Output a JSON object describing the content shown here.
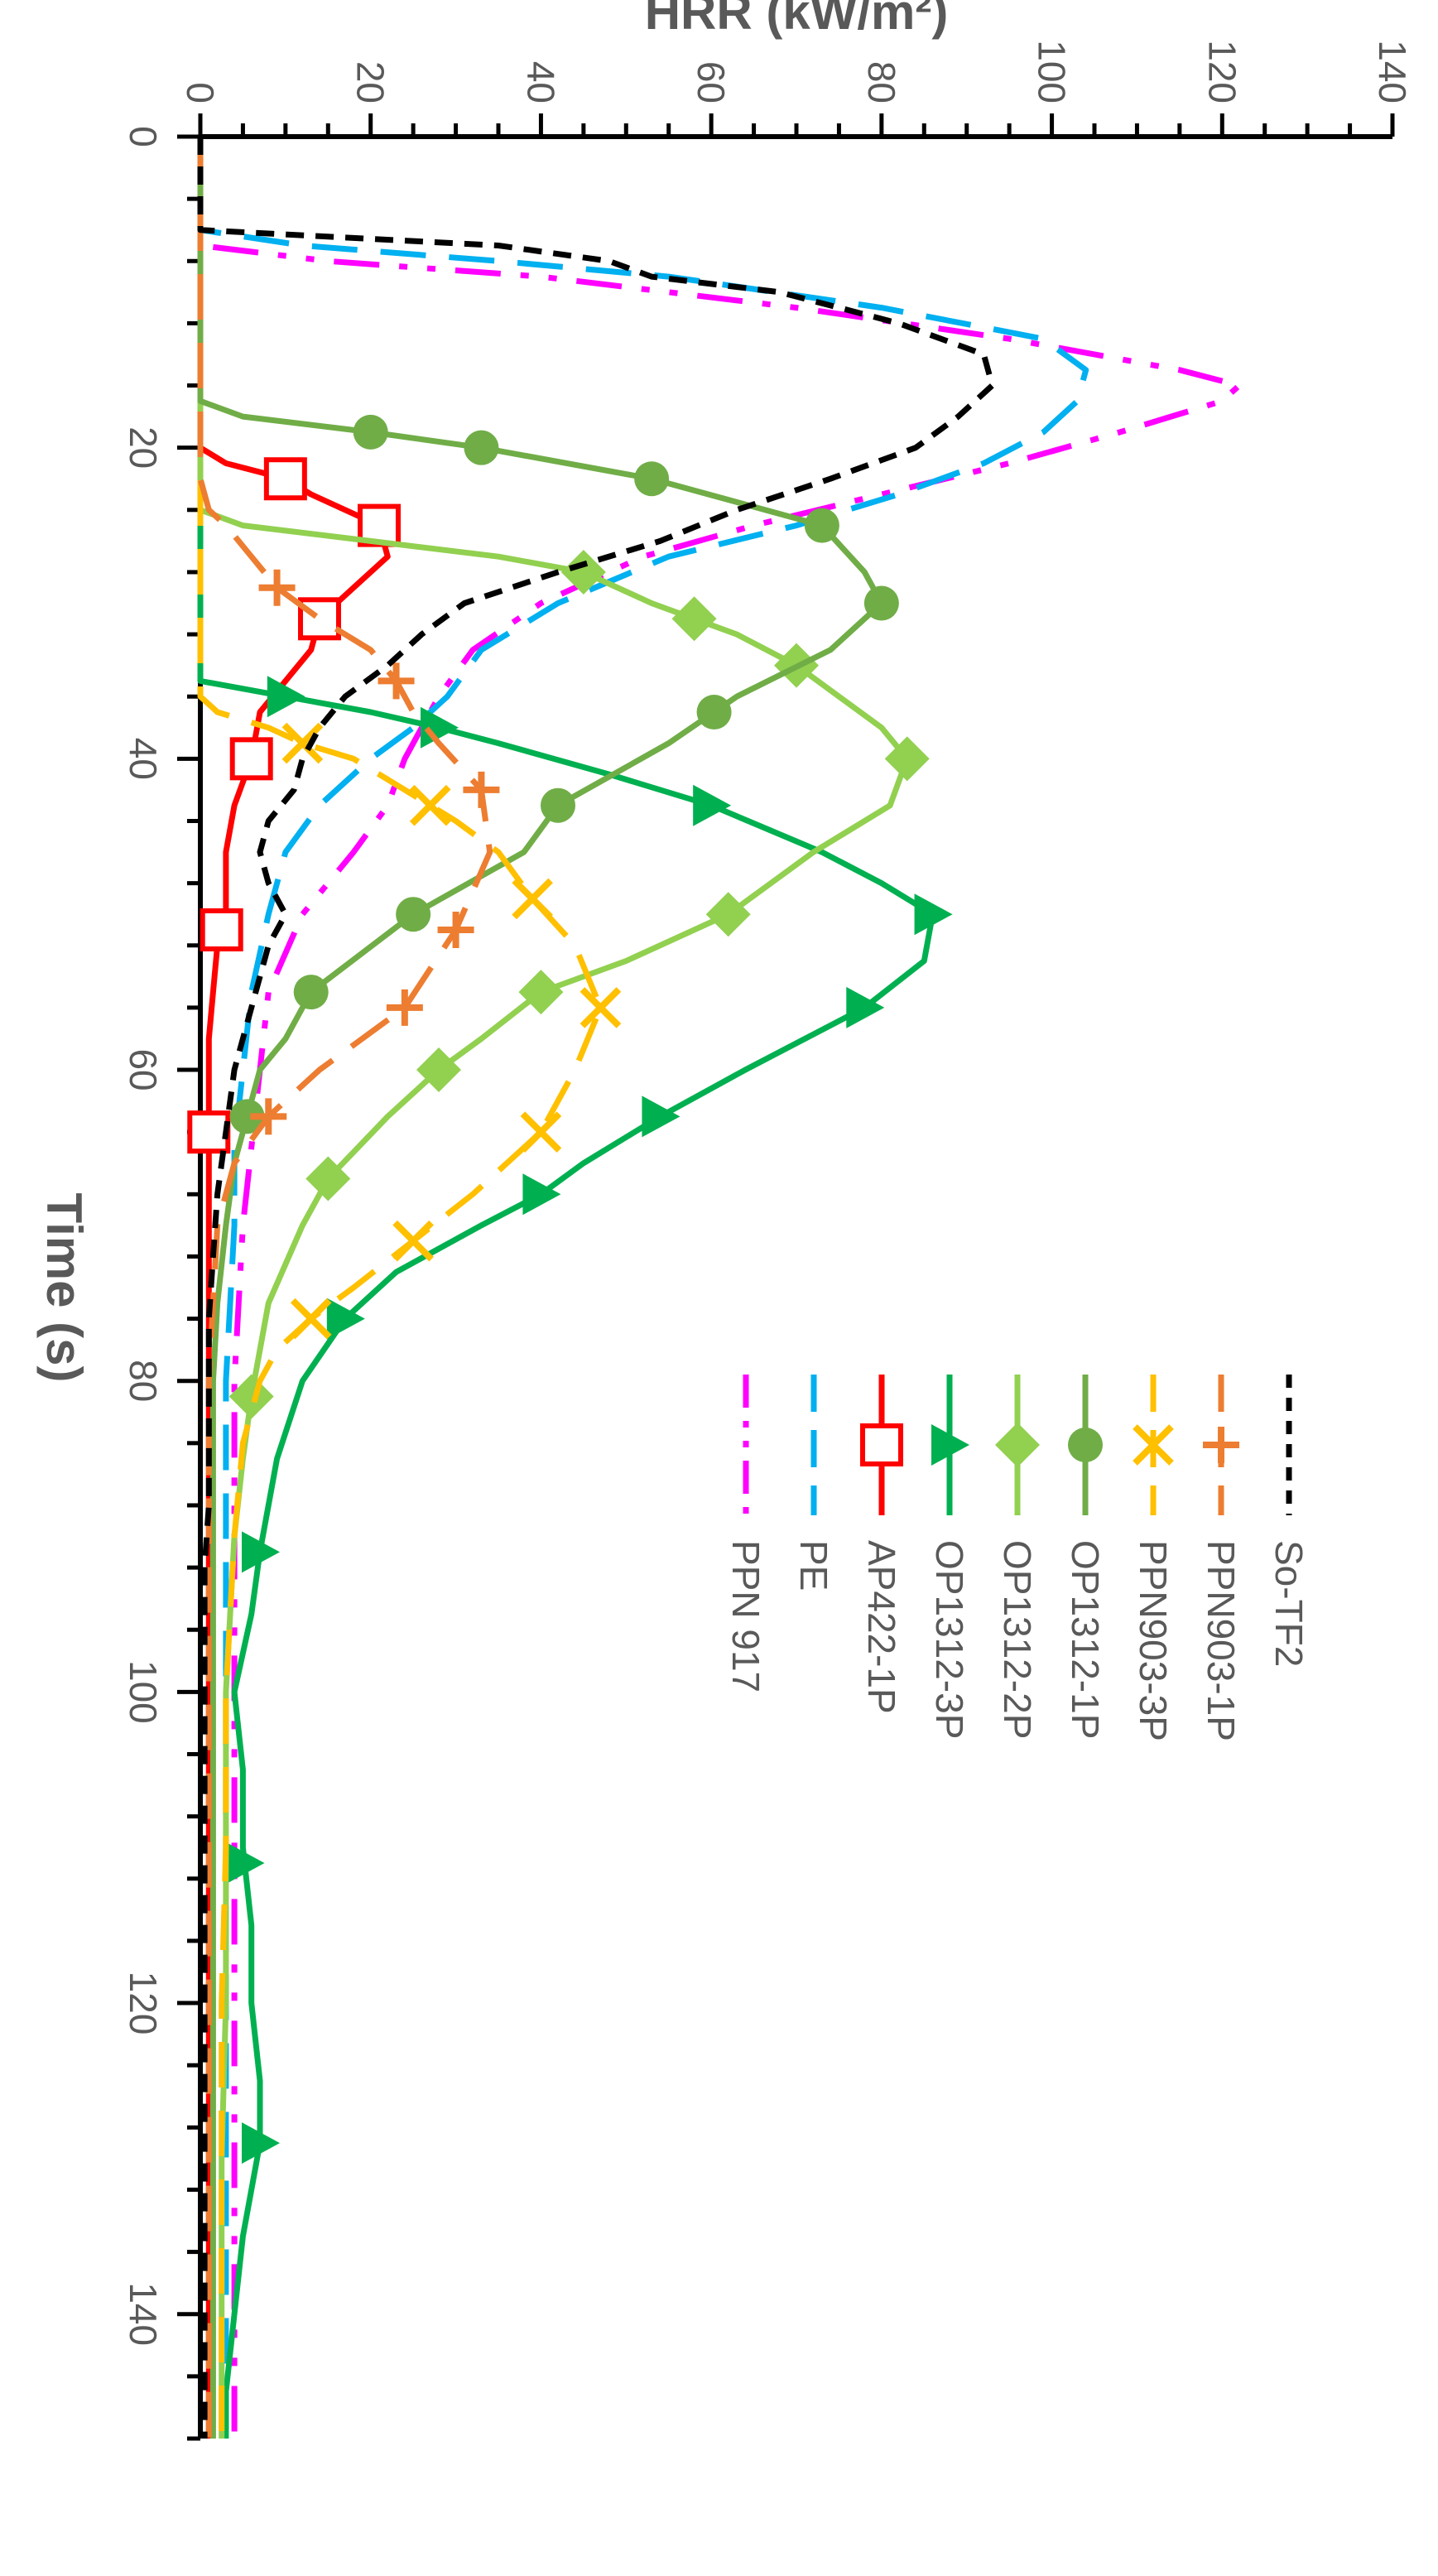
{
  "chart_data": {
    "type": "line",
    "title": "",
    "xlabel": "Time (s)",
    "ylabel": "HRR (kW/m²)",
    "xlim": [
      0,
      148
    ],
    "ylim": [
      0,
      140
    ],
    "x_ticks": [
      0,
      20,
      40,
      60,
      80,
      100,
      120,
      140
    ],
    "y_ticks": [
      0,
      20,
      40,
      60,
      80,
      100,
      120,
      140
    ],
    "grid": false,
    "legend_position": "top-right",
    "series": [
      {
        "name": "So-TF2",
        "color": "#000000",
        "dash": "dash",
        "marker": "none",
        "x": [
          0,
          6,
          7,
          8,
          9,
          10,
          12,
          14,
          16,
          18,
          20,
          22,
          24,
          26,
          28,
          30,
          32,
          34,
          36,
          38,
          40,
          42,
          44,
          46,
          48,
          50,
          52,
          56,
          60,
          64,
          68,
          72,
          76,
          80,
          84,
          88,
          92,
          100,
          110,
          120,
          130,
          140,
          148
        ],
        "y": [
          0,
          0,
          35,
          48,
          53,
          68,
          82,
          92,
          93,
          89,
          84,
          74,
          63,
          54,
          42,
          31,
          26,
          22,
          17,
          14,
          12,
          11,
          8,
          7,
          8,
          10,
          8,
          6,
          4,
          3,
          2,
          1.5,
          1,
          1,
          1,
          1,
          0.5,
          0.5,
          0.5,
          0.5,
          0.5,
          0.5,
          0.5
        ]
      },
      {
        "name": "PPN903-1P",
        "color": "#ED7D31",
        "dash": "longdash",
        "marker": "plus",
        "x": [
          0,
          22,
          24,
          25,
          27,
          29,
          31,
          33,
          35,
          37,
          39,
          42,
          46,
          51,
          56,
          60,
          63,
          66,
          70,
          75,
          80,
          90,
          100,
          110,
          120,
          130,
          140,
          148
        ],
        "y": [
          0,
          0,
          1,
          3,
          6,
          9,
          14,
          20,
          23,
          25,
          28,
          33,
          34,
          30,
          24,
          14,
          8,
          4,
          2,
          1.5,
          1,
          1,
          1,
          1,
          1,
          1,
          1,
          1
        ],
        "marker_x": [
          29,
          35,
          42,
          51,
          56,
          63
        ]
      },
      {
        "name": "PPN903-3P",
        "color": "#FFC000",
        "dash": "longdash",
        "marker": "x",
        "x": [
          0,
          36,
          37,
          38,
          39,
          40,
          42,
          44,
          46,
          49,
          52,
          56,
          60,
          64,
          68,
          71,
          74,
          76,
          78,
          80,
          84,
          90,
          100,
          110,
          120,
          130,
          140,
          148
        ],
        "y": [
          0,
          0,
          2,
          8,
          12,
          18,
          24,
          30,
          35,
          39,
          44,
          47,
          44,
          40,
          32,
          25,
          18,
          13,
          9,
          7,
          5,
          4,
          3,
          3,
          2.5,
          2.5,
          2.5,
          2.5
        ],
        "marker_x": [
          39,
          43,
          49,
          56,
          64,
          71,
          76
        ]
      },
      {
        "name": "OP1312-1P",
        "color": "#70AD47",
        "dash": "solid",
        "marker": "circle",
        "x": [
          0,
          17,
          18,
          19,
          20,
          22,
          25,
          28,
          30,
          33,
          36,
          39,
          43,
          46,
          50,
          55,
          58,
          60,
          62,
          64,
          66,
          70,
          75,
          80,
          90,
          100,
          110,
          120,
          130,
          140,
          148
        ],
        "y": [
          0,
          0,
          5,
          20,
          33,
          53,
          73,
          78,
          80,
          74,
          63,
          55,
          42,
          38,
          25,
          13,
          10,
          7,
          6,
          5,
          4,
          3,
          2,
          1.5,
          1.5,
          1.5,
          1.5,
          1.5,
          1.5,
          1.5,
          1.5
        ],
        "marker_x": [
          19,
          20,
          22,
          25,
          30,
          37,
          43,
          50,
          55,
          63
        ]
      },
      {
        "name": "OP1312-2P",
        "color": "#92D050",
        "dash": "solid",
        "marker": "diamond",
        "x": [
          0,
          24,
          25,
          26,
          27,
          28,
          30,
          32,
          34,
          36,
          38,
          40,
          43,
          46,
          50,
          53,
          55,
          58,
          60,
          63,
          67,
          70,
          75,
          81,
          85,
          90,
          100,
          110,
          120,
          130,
          140,
          148
        ],
        "y": [
          0,
          0,
          5,
          20,
          35,
          45,
          53,
          63,
          70,
          75,
          80,
          83,
          81,
          72,
          62,
          50,
          40,
          33,
          28,
          22,
          15,
          12,
          8,
          6,
          5,
          4,
          3,
          3,
          3,
          2.5,
          2.5,
          2.5
        ],
        "marker_x": [
          28,
          31,
          34,
          40,
          50,
          55,
          60,
          67,
          81
        ]
      },
      {
        "name": "OP1312-3P",
        "color": "#00B050",
        "dash": "solid",
        "marker": "triangle",
        "x": [
          0,
          35,
          36,
          37,
          38,
          39,
          41,
          43,
          46,
          48,
          50,
          53,
          56,
          60,
          63,
          66,
          68,
          70,
          73,
          76,
          80,
          85,
          91,
          95,
          100,
          105,
          110,
          115,
          120,
          125,
          129,
          135,
          140,
          145,
          148
        ],
        "y": [
          0,
          0,
          10,
          20,
          28,
          35,
          48,
          60,
          73,
          80,
          86,
          85,
          78,
          64,
          54,
          45,
          40,
          33,
          23,
          17,
          12,
          9,
          7,
          6,
          4,
          5,
          5,
          6,
          6,
          7,
          7,
          5,
          4,
          3,
          3
        ],
        "marker_x": [
          36,
          38,
          43,
          50,
          56,
          63,
          68,
          76,
          91,
          111,
          129
        ]
      },
      {
        "name": "AP422-1P",
        "color": "#FF0000",
        "dash": "solid",
        "marker": "square",
        "x": [
          0,
          20,
          21,
          22,
          23,
          25,
          27,
          29,
          31,
          33,
          35,
          37,
          40,
          43,
          46,
          48,
          50,
          52,
          55,
          58,
          62,
          64,
          66,
          70,
          75,
          80,
          90,
          100,
          110,
          120,
          130,
          140,
          148
        ],
        "y": [
          0,
          0,
          3,
          10,
          13,
          21,
          22,
          18,
          14,
          13,
          10,
          7,
          6,
          4,
          3,
          3,
          3,
          2,
          1.5,
          1,
          1,
          1,
          1,
          1,
          1,
          1,
          1,
          1,
          1,
          1,
          1,
          1,
          1
        ],
        "marker_x": [
          22,
          25,
          31,
          40,
          51,
          64
        ]
      },
      {
        "name": "PE",
        "color": "#00B0F0",
        "dash": "longdash",
        "marker": "none",
        "x": [
          0,
          6,
          7,
          8,
          9,
          11,
          13,
          15,
          17,
          19,
          21,
          23,
          25,
          27,
          30,
          33,
          36,
          38,
          40,
          43,
          46,
          50,
          55,
          60,
          65,
          70,
          80,
          90,
          100,
          110,
          120,
          130,
          140,
          148
        ],
        "y": [
          0,
          0,
          12,
          35,
          55,
          80,
          99,
          104,
          103,
          99,
          92,
          82,
          70,
          55,
          42,
          33,
          29,
          25,
          20,
          14,
          10,
          8,
          6,
          5,
          4,
          4,
          3,
          3,
          3,
          3,
          3,
          3,
          3,
          3
        ]
      },
      {
        "name": "PPN 917",
        "color": "#FF00FF",
        "dash": "dashdotdot",
        "marker": "none",
        "x": [
          0,
          7,
          8,
          9,
          11,
          13,
          15,
          16,
          17,
          19,
          21,
          23,
          25,
          27,
          30,
          33,
          36,
          38,
          40,
          43,
          46,
          50,
          55,
          60,
          65,
          70,
          80,
          90,
          100,
          110,
          120,
          130,
          140,
          148
        ],
        "y": [
          0,
          0,
          15,
          40,
          70,
          95,
          115,
          122,
          120,
          108,
          95,
          80,
          65,
          52,
          40,
          32,
          28,
          26,
          24,
          22,
          18,
          12,
          8,
          7,
          6,
          5,
          4,
          4,
          4,
          4,
          4,
          4,
          4,
          4
        ]
      }
    ]
  }
}
